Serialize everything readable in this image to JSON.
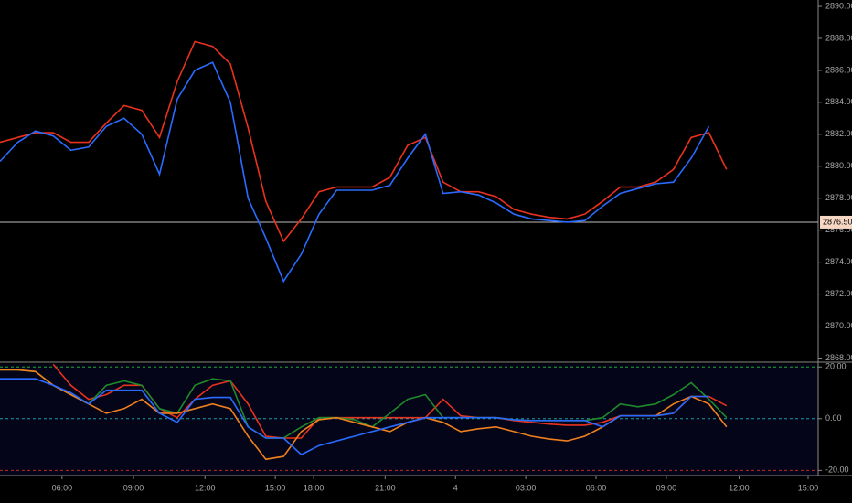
{
  "chart_data": [
    {
      "type": "line",
      "x": [
        0,
        3,
        6,
        9,
        12,
        15,
        18,
        21,
        24,
        27,
        30,
        33,
        36,
        39,
        42,
        45,
        48,
        51,
        54,
        57,
        60,
        63,
        66,
        69,
        72,
        75,
        78,
        81,
        84,
        87,
        90,
        93,
        96,
        99,
        102,
        105,
        108,
        111,
        114,
        117,
        120,
        123
      ],
      "xlim": [
        0,
        138.5
      ],
      "ylim": [
        2867.8,
        2890.4
      ],
      "yticks": [
        {
          "value": 2868,
          "label": "2868.00"
        },
        {
          "value": 2870,
          "label": "2870.00"
        },
        {
          "value": 2872,
          "label": "2872.00"
        },
        {
          "value": 2874,
          "label": "2874.00"
        },
        {
          "value": 2876,
          "label": "2876.00"
        },
        {
          "value": 2878,
          "label": "2878.00"
        },
        {
          "value": 2880,
          "label": "2880.00"
        },
        {
          "value": 2882,
          "label": "2882.00"
        },
        {
          "value": 2884,
          "label": "2884.00"
        },
        {
          "value": 2886,
          "label": "2886.00"
        },
        {
          "value": 2888,
          "label": "2888.00"
        },
        {
          "value": 2890,
          "label": "2890.00"
        }
      ],
      "last_price": {
        "value": 2876.5,
        "label": "2876.50"
      },
      "series": [
        {
          "color": "#e8321e",
          "values": [
            2881.5,
            2881.8,
            2882.1,
            2882.1,
            2881.5,
            2881.5,
            2882.7,
            2883.8,
            2883.5,
            2881.8,
            2885.3,
            2887.8,
            2887.5,
            2886.4,
            2882.4,
            2877.8,
            2875.3,
            2876.7,
            2878.4,
            2878.7,
            2878.7,
            2878.7,
            2879.3,
            2881.3,
            2881.8,
            2879.0,
            2878.4,
            2878.4,
            2878.1,
            2877.3,
            2877.0,
            2876.8,
            2876.7,
            2877.0,
            2877.8,
            2878.7,
            2878.7,
            2879.0,
            2879.8,
            2881.8,
            2882.1,
            2879.8
          ]
        },
        {
          "color": "#2a6bff",
          "values": [
            2880.3,
            2881.5,
            2882.2,
            2881.9,
            2881.0,
            2881.2,
            2882.5,
            2883.0,
            2882.0,
            2879.5,
            2884.2,
            2886.0,
            2886.5,
            2884.0,
            2878.0,
            2875.5,
            2872.8,
            2874.5,
            2877.0,
            2878.5,
            2878.5,
            2878.5,
            2878.8,
            2880.5,
            2882.0,
            2878.3,
            2878.4,
            2878.2,
            2877.7,
            2877.0,
            2876.7,
            2876.6,
            2876.5,
            2876.6,
            2877.5,
            2878.3,
            2878.6,
            2878.9,
            2879.0,
            2880.5,
            2882.5,
            null
          ]
        }
      ]
    },
    {
      "type": "line",
      "x": [
        0,
        3,
        6,
        9,
        12,
        15,
        18,
        21,
        24,
        27,
        30,
        33,
        36,
        39,
        42,
        45,
        48,
        51,
        54,
        57,
        60,
        63,
        66,
        69,
        72,
        75,
        78,
        81,
        84,
        87,
        90,
        93,
        96,
        99,
        102,
        105,
        108,
        111,
        114,
        117,
        120,
        123
      ],
      "xlim": [
        0,
        138.5
      ],
      "ylim": [
        -22,
        21.5
      ],
      "yticks": [
        {
          "value": 20,
          "label": "20.00"
        },
        {
          "value": 0,
          "label": "0.00"
        },
        {
          "value": -20,
          "label": "-20.00"
        }
      ],
      "xticks": [
        {
          "value": 10.5,
          "label": "06:00"
        },
        {
          "value": 22.6,
          "label": "09:00"
        },
        {
          "value": 34.7,
          "label": "12:00"
        },
        {
          "value": 46.6,
          "label": "15:00"
        },
        {
          "value": 53.1,
          "label": "18:00"
        },
        {
          "value": 65.2,
          "label": "21:00"
        },
        {
          "value": 77.1,
          "label": "4"
        },
        {
          "value": 89,
          "label": "03:00"
        },
        {
          "value": 100.9,
          "label": "06:00"
        },
        {
          "value": 112.8,
          "label": "09:00"
        },
        {
          "value": 125.1,
          "label": "12:00"
        },
        {
          "value": 136.8,
          "label": "15:00"
        }
      ],
      "series": [
        {
          "color": "#e8321e",
          "values": [
            null,
            null,
            null,
            21,
            12.9,
            7.5,
            9.3,
            12.9,
            12.9,
            3.9,
            0.4,
            7.5,
            12.9,
            14.6,
            5.7,
            -6.8,
            -7.5,
            -7.5,
            0.4,
            0.4,
            0.4,
            0.4,
            0.4,
            0.4,
            0.4,
            7.5,
            1.1,
            0.4,
            0.4,
            -0.7,
            -1.4,
            -2.1,
            -2.5,
            -2.5,
            -1.4,
            1.1,
            1.1,
            1.1,
            2.1,
            8.6,
            8.6,
            5
          ]
        },
        {
          "color": "#1f8a2a",
          "values": [
            18.9,
            18.9,
            18.2,
            12.9,
            9.3,
            5.7,
            12.9,
            14.6,
            12.9,
            3.9,
            2.1,
            12.9,
            15.4,
            14.6,
            -3.2,
            -7.5,
            -7.5,
            -3.2,
            0.4,
            0.4,
            -0.4,
            -3.2,
            2.1,
            7.5,
            9.3,
            0.4,
            0.4,
            0.4,
            0.4,
            -0.4,
            -0.7,
            -0.7,
            -0.7,
            -0.7,
            0.4,
            5.7,
            4.6,
            5.7,
            9.3,
            13.9,
            7.5,
            0.4
          ]
        },
        {
          "color": "#f07f1e",
          "values": [
            18.9,
            18.9,
            18.2,
            12.9,
            9.3,
            5.7,
            2.1,
            3.9,
            7.5,
            2.1,
            2.1,
            3.9,
            5.7,
            3.9,
            -6.8,
            -15.7,
            -14.6,
            -5,
            -0.4,
            0.4,
            -1.4,
            -3.2,
            -5,
            -1.4,
            0.4,
            -1.4,
            -5,
            -3.9,
            -3.2,
            -5,
            -6.8,
            -7.9,
            -8.6,
            -6.8,
            -3.2,
            1.1,
            1.1,
            1.1,
            5.7,
            8.6,
            5.7,
            -3.2
          ]
        },
        {
          "color": "#2a6bff",
          "values": [
            15.4,
            15.4,
            15.4,
            12.9,
            10,
            5.7,
            11,
            11,
            11,
            2.1,
            -1.4,
            7.5,
            8.2,
            8.2,
            -3.2,
            -7.5,
            -7.5,
            -13.9,
            -10.4,
            -8.6,
            -6.8,
            -5,
            -3.2,
            -1.4,
            0.4,
            0.4,
            0.4,
            0.4,
            0.4,
            -0.4,
            -0.7,
            -0.7,
            -0.7,
            -0.7,
            -3.2,
            1.1,
            1.1,
            1.1,
            2.1,
            8.6,
            8.6,
            null
          ]
        }
      ]
    }
  ]
}
